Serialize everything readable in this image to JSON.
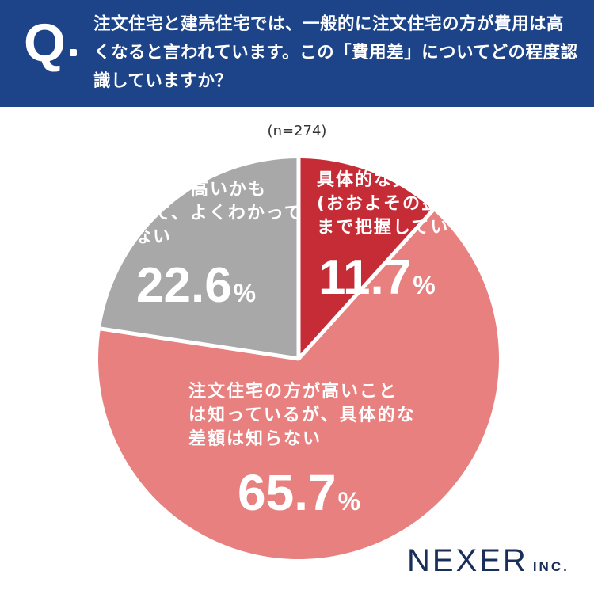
{
  "header": {
    "q_letter": "Q",
    "question": "注文住宅と建売住宅では、一般的に注文住宅の方が費用は高くなると言われています。この「費用差」についてどの程度認識していますか？"
  },
  "sample_size": "(n=274)",
  "chart_data": {
    "type": "pie",
    "start_angle_deg": 0,
    "direction": "clockwise",
    "slices": [
      {
        "label": "具体的な費用差(おおよその金額)まで把握している",
        "value": 11.7,
        "display": "11.7",
        "unit": "%",
        "color": "#c52c35"
      },
      {
        "label": "注文住宅の方が高いことは知っているが、具体的な差額は知らない",
        "value": 65.7,
        "display": "65.7",
        "unit": "%",
        "color": "#e88080"
      },
      {
        "label": "どちらが高いかも含めて、よくわかっていない",
        "value": 22.6,
        "display": "22.6",
        "unit": "%",
        "color": "#a8a8a8"
      }
    ]
  },
  "labels": {
    "known": {
      "lines": [
        "具体的な費用差",
        "(おおよその金額)",
        "まで把握している"
      ]
    },
    "partial": {
      "lines": [
        "注文住宅の方が高いこと",
        "は知っているが、具体的な",
        "差額は知らない"
      ]
    },
    "unknown": {
      "lines": [
        "どちらが高いかも",
        "含めて、よくわかって",
        "いない"
      ]
    }
  },
  "logo": {
    "main": "NEXER",
    "suffix": "INC."
  }
}
